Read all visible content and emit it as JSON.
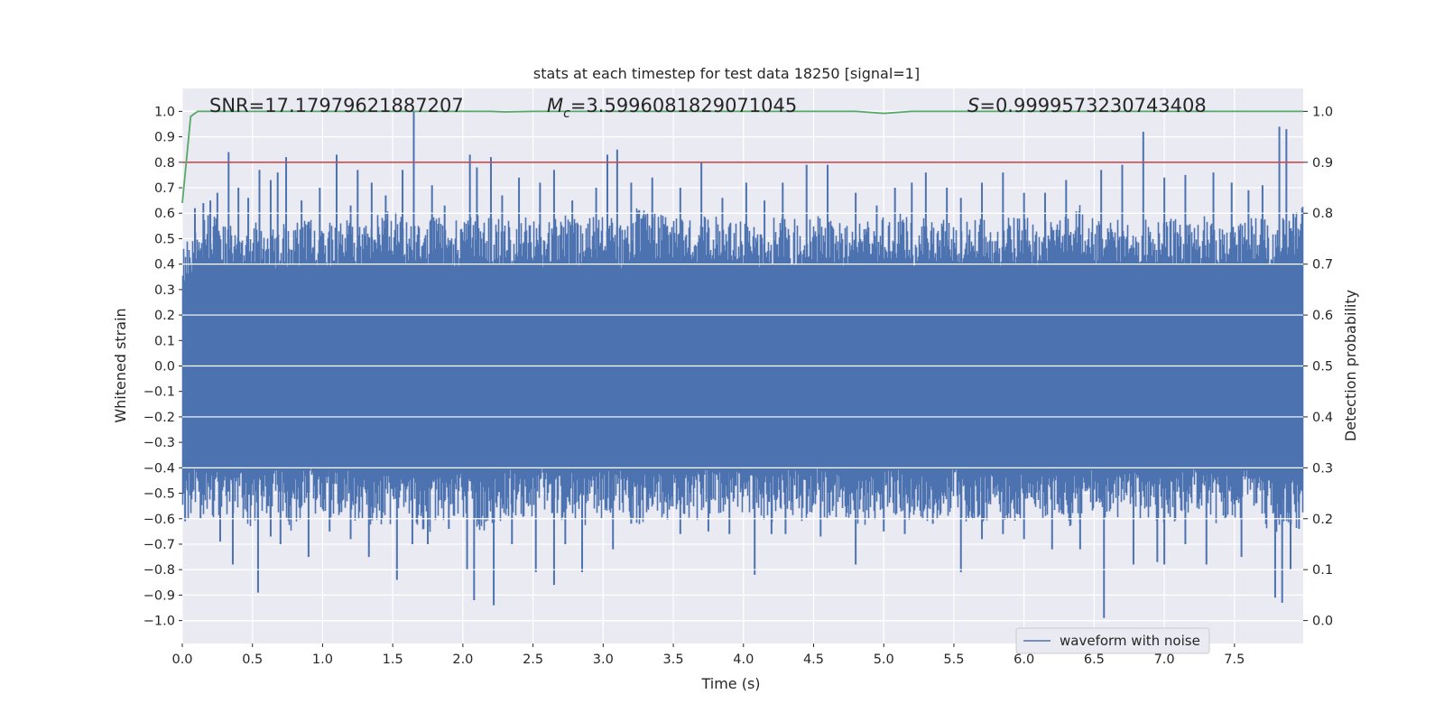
{
  "chart_data": {
    "type": "line",
    "title": "stats at each timestep for test data 18250 [signal=1]",
    "xlabel": "Time (s)",
    "ylabel": "Whitened strain",
    "ylabel_right": "Detection probability",
    "xlim": [
      0.0,
      7.99
    ],
    "ylim": [
      -1.09,
      1.09
    ],
    "ylim_right": [
      -0.045,
      1.045
    ],
    "x_ticks": [
      "0.0",
      "0.5",
      "1.0",
      "1.5",
      "2.0",
      "2.5",
      "3.0",
      "3.5",
      "4.0",
      "4.5",
      "5.0",
      "5.5",
      "6.0",
      "6.5",
      "7.0",
      "7.5"
    ],
    "x_tick_values": [
      0.0,
      0.5,
      1.0,
      1.5,
      2.0,
      2.5,
      3.0,
      3.5,
      4.0,
      4.5,
      5.0,
      5.5,
      6.0,
      6.5,
      7.0,
      7.5
    ],
    "y_ticks": [
      "1.0",
      "0.9",
      "0.8",
      "0.7",
      "0.6",
      "0.5",
      "0.4",
      "0.3",
      "0.2",
      "0.1",
      "0.0",
      "−0.1",
      "−0.2",
      "−0.3",
      "−0.4",
      "−0.5",
      "−0.6",
      "−0.7",
      "−0.8",
      "−0.9",
      "−1.0"
    ],
    "y_tick_values": [
      1.0,
      0.9,
      0.8,
      0.7,
      0.6,
      0.5,
      0.4,
      0.3,
      0.2,
      0.1,
      0.0,
      -0.1,
      -0.2,
      -0.3,
      -0.4,
      -0.5,
      -0.6,
      -0.7,
      -0.8,
      -0.9,
      -1.0
    ],
    "y_right_ticks": [
      "1.0",
      "0.9",
      "0.8",
      "0.7",
      "0.6",
      "0.5",
      "0.4",
      "0.3",
      "0.2",
      "0.1",
      "0.0"
    ],
    "y_right_tick_values": [
      1.0,
      0.9,
      0.8,
      0.7,
      0.6,
      0.5,
      0.4,
      0.3,
      0.2,
      0.1,
      0.0
    ],
    "annotations": {
      "snr": "SNR=17.17979621887207",
      "mc_symbol": "M",
      "mc_sub": "c",
      "mc_value": "=3.5996081829071045",
      "s_symbol": "S",
      "s_value": "=0.9999573230743408"
    },
    "legend": {
      "label": "waveform with noise",
      "position": "lower-right"
    },
    "threshold": {
      "axis": "right",
      "value": 0.9
    },
    "series": [
      {
        "name": "waveform with noise",
        "axis": "left",
        "style": "dense-noise",
        "env_top": [
          0.46,
          0.5,
          0.58,
          0.55,
          0.52,
          0.55,
          0.5,
          0.54,
          0.52,
          0.56,
          0.5,
          0.55,
          0.54,
          0.56,
          0.57,
          0.6,
          0.55,
          0.52,
          0.56,
          0.55,
          0.54,
          0.6,
          0.56,
          0.55,
          0.54,
          0.56,
          0.52,
          0.58,
          0.55,
          0.54,
          0.56,
          0.55,
          0.52,
          0.6,
          0.58,
          0.56,
          0.55,
          0.54,
          0.56,
          0.55,
          0.54,
          0.56,
          0.52,
          0.56,
          0.55,
          0.54,
          0.56,
          0.55,
          0.54,
          0.58,
          0.56,
          0.55,
          0.57,
          0.54,
          0.56,
          0.55,
          0.52,
          0.56,
          0.55,
          0.54,
          0.56,
          0.55,
          0.54,
          0.56,
          0.58,
          0.6,
          0.55,
          0.54,
          0.56,
          0.55,
          0.54,
          0.56,
          0.55,
          0.54,
          0.56,
          0.55,
          0.54,
          0.56,
          0.55,
          0.54,
          0.56,
          0.6
        ],
        "env_bottom": [
          -0.6,
          -0.55,
          -0.58,
          -0.56,
          -0.55,
          -0.6,
          -0.58,
          -0.56,
          -0.62,
          -0.55,
          -0.58,
          -0.56,
          -0.55,
          -0.6,
          -0.58,
          -0.6,
          -0.55,
          -0.6,
          -0.62,
          -0.58,
          -0.56,
          -0.6,
          -0.62,
          -0.58,
          -0.56,
          -0.6,
          -0.55,
          -0.58,
          -0.56,
          -0.6,
          -0.58,
          -0.56,
          -0.55,
          -0.6,
          -0.58,
          -0.6,
          -0.55,
          -0.58,
          -0.56,
          -0.58,
          -0.56,
          -0.55,
          -0.6,
          -0.58,
          -0.56,
          -0.6,
          -0.55,
          -0.58,
          -0.56,
          -0.6,
          -0.58,
          -0.56,
          -0.55,
          -0.6,
          -0.58,
          -0.56,
          -0.55,
          -0.6,
          -0.58,
          -0.56,
          -0.6,
          -0.55,
          -0.58,
          -0.56,
          -0.6,
          -0.58,
          -0.56,
          -0.6,
          -0.55,
          -0.58,
          -0.56,
          -0.6,
          -0.58,
          -0.56,
          -0.55,
          -0.6,
          -0.58,
          -0.56,
          -0.6,
          -0.62,
          -0.6,
          -0.62
        ],
        "peaks_pos": [
          [
            0.09,
            0.62
          ],
          [
            0.15,
            0.64
          ],
          [
            0.2,
            0.65
          ],
          [
            0.25,
            0.68
          ],
          [
            0.33,
            0.84
          ],
          [
            0.4,
            0.7
          ],
          [
            0.47,
            0.66
          ],
          [
            0.55,
            0.77
          ],
          [
            0.63,
            0.73
          ],
          [
            0.68,
            0.76
          ],
          [
            0.74,
            0.82
          ],
          [
            0.85,
            0.65
          ],
          [
            0.98,
            0.7
          ],
          [
            1.1,
            0.83
          ],
          [
            1.2,
            0.63
          ],
          [
            1.25,
            0.77
          ],
          [
            1.35,
            0.72
          ],
          [
            1.45,
            0.67
          ],
          [
            1.57,
            0.77
          ],
          [
            1.65,
            1.0
          ],
          [
            1.78,
            0.71
          ],
          [
            1.87,
            0.63
          ],
          [
            2.05,
            0.83
          ],
          [
            2.1,
            0.78
          ],
          [
            2.2,
            0.82
          ],
          [
            2.28,
            0.67
          ],
          [
            2.4,
            0.74
          ],
          [
            2.55,
            0.72
          ],
          [
            2.65,
            0.77
          ],
          [
            2.78,
            0.65
          ],
          [
            2.95,
            0.7
          ],
          [
            3.03,
            0.83
          ],
          [
            3.1,
            0.85
          ],
          [
            3.2,
            0.72
          ],
          [
            3.35,
            0.74
          ],
          [
            3.55,
            0.7
          ],
          [
            3.7,
            0.8
          ],
          [
            3.85,
            0.66
          ],
          [
            4.02,
            0.72
          ],
          [
            4.15,
            0.65
          ],
          [
            4.28,
            0.72
          ],
          [
            4.45,
            0.79
          ],
          [
            4.6,
            0.79
          ],
          [
            4.8,
            0.68
          ],
          [
            4.95,
            0.63
          ],
          [
            5.08,
            0.7
          ],
          [
            5.2,
            0.72
          ],
          [
            5.3,
            0.76
          ],
          [
            5.45,
            0.7
          ],
          [
            5.55,
            0.66
          ],
          [
            5.7,
            0.72
          ],
          [
            5.85,
            0.76
          ],
          [
            6.0,
            0.68
          ],
          [
            6.15,
            0.68
          ],
          [
            6.3,
            0.73
          ],
          [
            6.55,
            0.77
          ],
          [
            6.7,
            0.79
          ],
          [
            6.85,
            0.92
          ],
          [
            7.0,
            0.74
          ],
          [
            7.15,
            0.75
          ],
          [
            7.35,
            0.76
          ],
          [
            7.48,
            0.72
          ],
          [
            7.6,
            0.69
          ],
          [
            7.7,
            0.71
          ],
          [
            7.82,
            0.94
          ],
          [
            7.87,
            0.93
          ],
          [
            7.92,
            0.6
          ]
        ],
        "peaks_neg": [
          [
            0.02,
            -0.61
          ],
          [
            0.13,
            -0.6
          ],
          [
            0.27,
            -0.69
          ],
          [
            0.36,
            -0.78
          ],
          [
            0.54,
            -0.89
          ],
          [
            0.63,
            -0.67
          ],
          [
            0.7,
            -0.7
          ],
          [
            0.9,
            -0.75
          ],
          [
            1.05,
            -0.65
          ],
          [
            1.2,
            -0.68
          ],
          [
            1.33,
            -0.75
          ],
          [
            1.53,
            -0.84
          ],
          [
            1.64,
            -0.7
          ],
          [
            1.75,
            -0.7
          ],
          [
            1.9,
            -0.64
          ],
          [
            2.03,
            -0.8
          ],
          [
            2.08,
            -0.92
          ],
          [
            2.22,
            -0.94
          ],
          [
            2.35,
            -0.7
          ],
          [
            2.52,
            -0.81
          ],
          [
            2.65,
            -0.86
          ],
          [
            2.73,
            -0.7
          ],
          [
            2.85,
            -0.81
          ],
          [
            3.07,
            -0.72
          ],
          [
            3.2,
            -0.62
          ],
          [
            3.55,
            -0.66
          ],
          [
            3.75,
            -0.65
          ],
          [
            3.9,
            -0.66
          ],
          [
            4.08,
            -0.82
          ],
          [
            4.2,
            -0.66
          ],
          [
            4.3,
            -0.66
          ],
          [
            4.55,
            -0.67
          ],
          [
            4.8,
            -0.78
          ],
          [
            5.0,
            -0.65
          ],
          [
            5.15,
            -0.66
          ],
          [
            5.35,
            -0.62
          ],
          [
            5.55,
            -0.81
          ],
          [
            5.7,
            -0.68
          ],
          [
            5.85,
            -0.66
          ],
          [
            6.0,
            -0.68
          ],
          [
            6.2,
            -0.72
          ],
          [
            6.4,
            -0.72
          ],
          [
            6.57,
            -0.99
          ],
          [
            6.78,
            -0.78
          ],
          [
            6.95,
            -0.77
          ],
          [
            7.0,
            -0.78
          ],
          [
            7.15,
            -0.7
          ],
          [
            7.3,
            -0.78
          ],
          [
            7.55,
            -0.75
          ],
          [
            7.79,
            -0.91
          ],
          [
            7.84,
            -0.93
          ],
          [
            7.9,
            -0.8
          ],
          [
            7.96,
            -0.64
          ]
        ]
      },
      {
        "name": "detection probability",
        "axis": "right",
        "x": [
          0.0,
          0.06,
          0.11,
          0.3,
          0.6,
          1.0,
          1.3,
          1.6,
          2.0,
          2.2,
          2.3,
          2.5,
          2.7,
          3.0,
          3.3,
          3.6,
          4.0,
          4.5,
          4.8,
          5.0,
          5.2,
          5.5,
          6.0,
          6.5,
          7.0,
          7.5,
          7.99
        ],
        "values": [
          0.82,
          0.99,
          1.0,
          1.0,
          1.0,
          1.0,
          1.0,
          1.0,
          1.0,
          1.0,
          0.999,
          1.0,
          1.0,
          1.0,
          1.0,
          1.0,
          1.0,
          1.0,
          1.0,
          0.996,
          1.0,
          1.0,
          1.0,
          1.0,
          1.0,
          1.0,
          1.0
        ]
      }
    ]
  },
  "colors": {
    "background": "#eaeaf2",
    "grid": "#ffffff",
    "waveform": "#4c72b0",
    "probability": "#55a868",
    "threshold": "#c44e52"
  }
}
